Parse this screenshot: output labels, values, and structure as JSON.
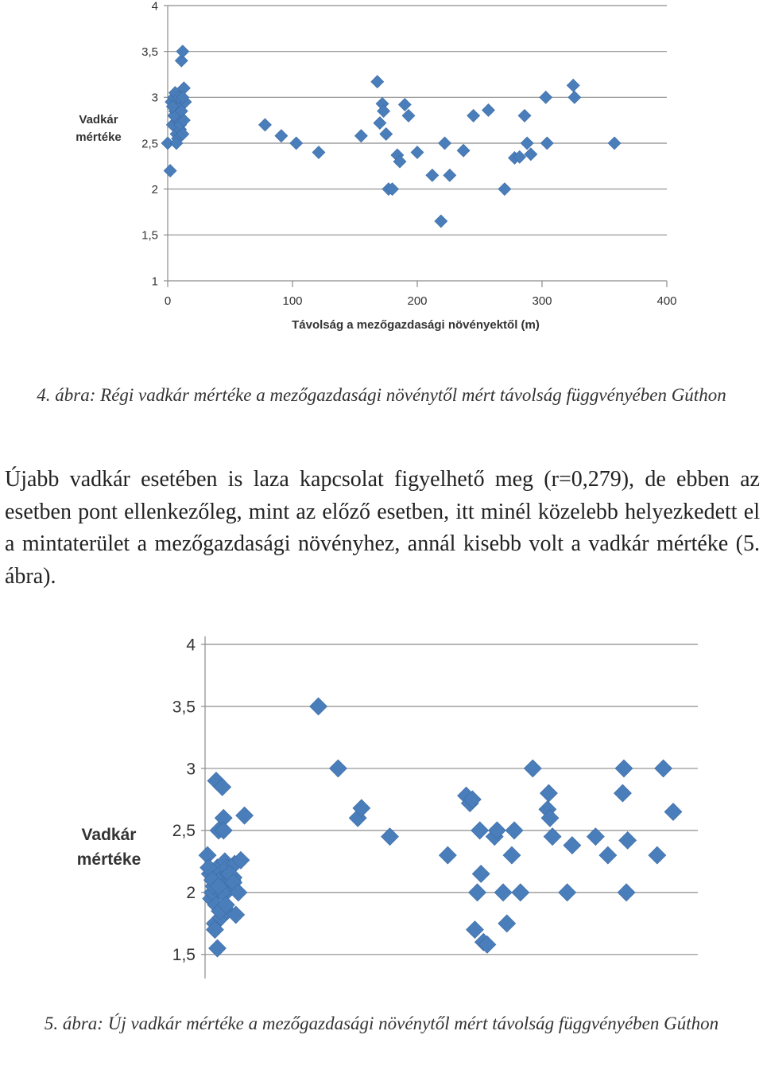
{
  "figure4": {
    "caption": "4. ábra: Régi vadkár mértéke a mezőgazdasági növénytől mért távolság függvényében Gúthon",
    "chart_data": {
      "type": "scatter",
      "xlabel": "Távolság a mezőgazdasági növényektől (m)",
      "ylabel": "Vadkár mértéke",
      "xlim": [
        0,
        400
      ],
      "ylim": [
        1,
        4
      ],
      "x_ticks": [
        "0",
        "100",
        "200",
        "300",
        "400"
      ],
      "y_ticks": [
        "1",
        "1,5",
        "2",
        "2,5",
        "3",
        "3,5",
        "4"
      ],
      "grid": "horizontal",
      "marker_color": "#4a7ebb",
      "x": [
        0,
        2,
        3,
        4,
        5,
        6,
        7,
        8,
        9,
        10,
        11,
        12,
        13,
        14,
        5,
        6,
        8,
        10,
        12,
        11,
        7,
        9,
        13,
        4,
        12,
        78,
        91,
        103,
        121,
        155,
        168,
        170,
        172,
        173,
        175,
        177,
        180,
        184,
        186,
        190,
        193,
        200,
        212,
        219,
        222,
        226,
        237,
        245,
        257,
        270,
        278,
        282,
        286,
        288,
        291,
        303,
        304,
        325,
        326,
        358
      ],
      "y": [
        2.5,
        2.2,
        2.95,
        2.7,
        3.0,
        2.85,
        2.6,
        2.75,
        2.9,
        2.65,
        3.4,
        3.5,
        3.1,
        2.95,
        2.8,
        3.05,
        2.55,
        2.7,
        2.6,
        2.85,
        2.5,
        3.0,
        2.75,
        2.9,
        3.0,
        2.7,
        2.58,
        2.5,
        2.4,
        2.58,
        3.17,
        2.72,
        2.93,
        2.85,
        2.6,
        2.0,
        2.0,
        2.37,
        2.3,
        2.92,
        2.8,
        2.4,
        2.15,
        1.65,
        2.5,
        2.15,
        2.42,
        2.8,
        2.86,
        2.0,
        2.34,
        2.35,
        2.8,
        2.5,
        2.38,
        3.0,
        2.5,
        3.13,
        3.0,
        2.5
      ]
    }
  },
  "paragraph": "Újabb vadkár esetében is laza kapcsolat figyelhető meg (r=0,279), de ebben az esetben pont ellenkezőleg, mint az előző esetben, itt minél közelebb helyezkedett el a mintaterület a mezőgazdasági növényhez, annál kisebb volt a vadkár mértéke (5. ábra).",
  "figure5": {
    "caption": "5. ábra: Új vadkár mértéke a mezőgazdasági növénytől mért távolság függvényében Gúthon",
    "chart_data": {
      "type": "scatter",
      "ylabel": "Vadkár mértéke",
      "xlim": [
        0,
        400
      ],
      "ylim": [
        1.3,
        4
      ],
      "y_ticks": [
        "1,5",
        "2",
        "2,5",
        "3",
        "3,5",
        "4"
      ],
      "grid": "horizontal",
      "marker_color": "#4a7ebb",
      "x": [
        2,
        4,
        5,
        6,
        7,
        8,
        9,
        10,
        11,
        12,
        13,
        14,
        15,
        16,
        17,
        18,
        19,
        20,
        3,
        6,
        9,
        12,
        15,
        18,
        21,
        22,
        23,
        24,
        10,
        14,
        17,
        20,
        23,
        25,
        27,
        8,
        11,
        29,
        32,
        92,
        108,
        124,
        127,
        150,
        197,
        212,
        215,
        217,
        219,
        221,
        223,
        224,
        226,
        229,
        235,
        237,
        242,
        245,
        249,
        251,
        256,
        266,
        278,
        279,
        280,
        282,
        294,
        298,
        317,
        327,
        339,
        340,
        342,
        343,
        367,
        372,
        380
      ],
      "y": [
        2.3,
        2.15,
        1.95,
        2.0,
        2.05,
        1.75,
        2.9,
        2.2,
        2.5,
        2.1,
        1.8,
        2.85,
        2.6,
        2.25,
        2.0,
        1.85,
        2.15,
        2.1,
        2.2,
        2.1,
        1.9,
        1.85,
        2.5,
        2.2,
        2.12,
        2.1,
        2.12,
        2.23,
        1.55,
        2.0,
        1.9,
        2.15,
        2.08,
        1.82,
        2.0,
        1.7,
        2.05,
        2.26,
        2.62,
        3.5,
        3.0,
        2.6,
        2.68,
        2.45,
        2.3,
        2.78,
        2.72,
        2.75,
        1.7,
        2.0,
        2.5,
        2.15,
        1.6,
        1.58,
        2.45,
        2.5,
        2.0,
        1.75,
        2.3,
        2.5,
        2.0,
        3.0,
        2.67,
        2.8,
        2.6,
        2.45,
        2.0,
        2.38,
        2.45,
        2.3,
        2.8,
        3.0,
        2.0,
        2.42,
        2.3,
        3.0,
        2.65
      ]
    }
  }
}
